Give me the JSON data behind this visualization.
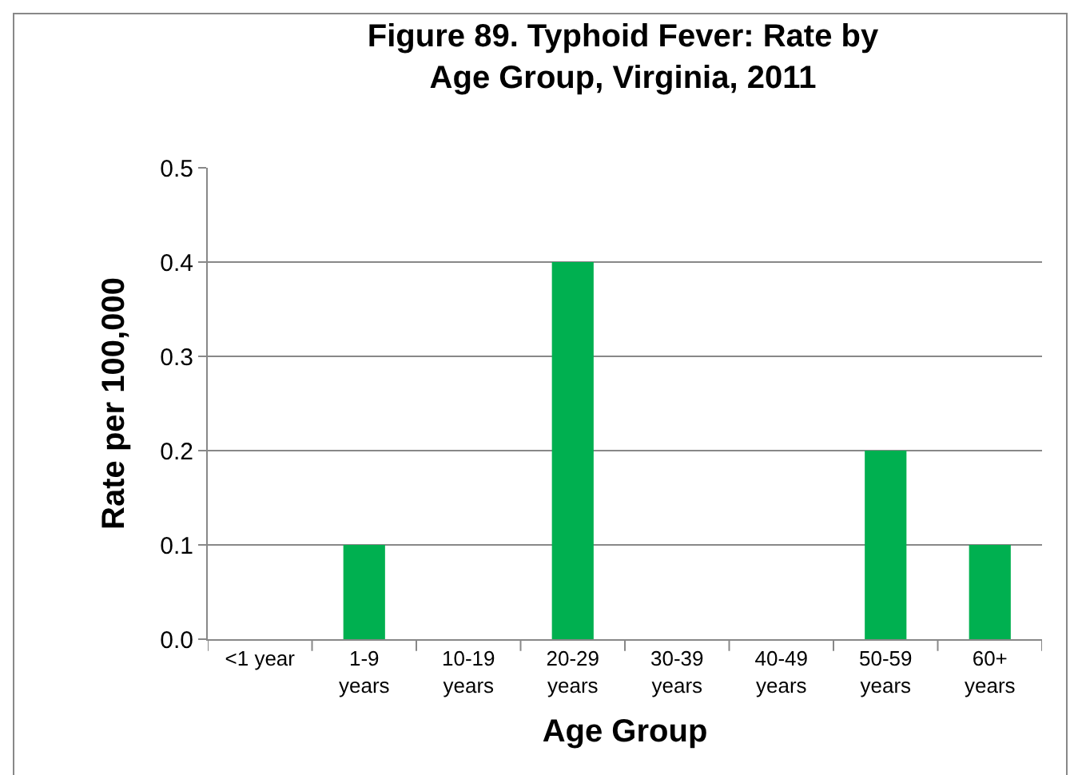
{
  "chart_data": {
    "type": "bar",
    "title": "Figure 89. Typhoid Fever: Rate by Age Group, Virginia, 2011",
    "xlabel": "Age Group",
    "ylabel": "Rate per 100,000",
    "categories": [
      "<1 year",
      "1-9 years",
      "10-19 years",
      "20-29 years",
      "30-39 years",
      "40-49 years",
      "50-59 years",
      "60+ years"
    ],
    "values": [
      0,
      0.1,
      0,
      0.4,
      0,
      0,
      0.2,
      0.1
    ],
    "color": "#00b050",
    "ylim": [
      0,
      0.5
    ],
    "yticks": [
      {
        "value": 0,
        "label": "0.0"
      },
      0.1,
      0.2,
      0.3,
      0.4,
      0.5
    ],
    "grid": "y"
  }
}
